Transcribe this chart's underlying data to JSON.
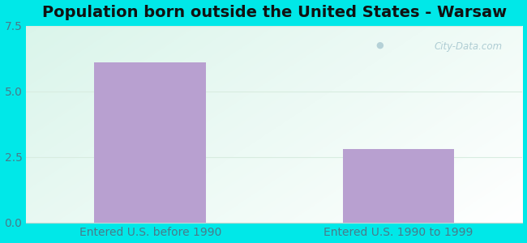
{
  "title": "Population born outside the United States - Warsaw",
  "categories": [
    "Entered U.S. before 1990",
    "Entered U.S. 1990 to 1999"
  ],
  "values": [
    6.1,
    2.8
  ],
  "bar_color": "#b8a0d0",
  "bar_width": 0.45,
  "ylim": [
    0,
    7.5
  ],
  "yticks": [
    0,
    2.5,
    5,
    7.5
  ],
  "title_fontsize": 14,
  "tick_fontsize": 10,
  "outer_bg_color": "#00e8e8",
  "plot_bg_color_topleft": "#e8f5e8",
  "plot_bg_color_topright": "#f5faf5",
  "plot_bg_color_bottomleft": "#c8e8d8",
  "plot_bg_color_bottomright": "#e0f0e8",
  "watermark_text": "City-Data.com",
  "watermark_color": "#a8c8d0",
  "grid_color": "#d8ece0",
  "tick_color": "#4a7a8a",
  "title_color": "#111111"
}
